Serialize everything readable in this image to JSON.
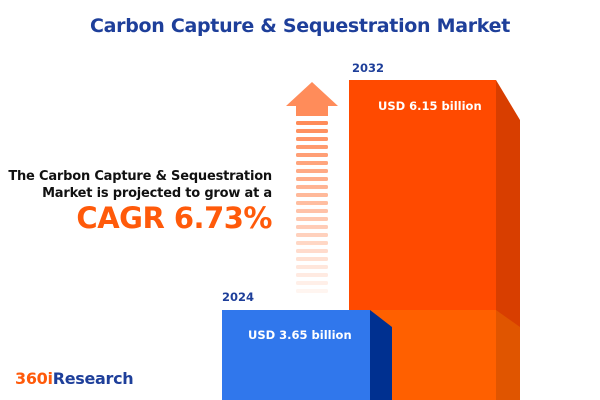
{
  "title": "Carbon Capture & Sequestration Market",
  "description_line1": "The Carbon Capture & Sequestration",
  "description_line2": "Market is projected to grow at a",
  "cagr_label": "CAGR 6.73%",
  "logo": {
    "part1": "360i",
    "part2": "Research"
  },
  "colors": {
    "title": "#1e3f9a",
    "bar_2024": "#3077ec",
    "bar_2024_side": "#003090",
    "bar_2032": "#ff4a00",
    "bar_2032_side": "#d83e00",
    "arrow": "#ff8c5a",
    "cagr": "#ff5a0a"
  },
  "chart_data": {
    "type": "bar",
    "title": "Carbon Capture & Sequestration Market",
    "categories": [
      "2024",
      "2032"
    ],
    "values": [
      3.65,
      6.15
    ],
    "unit": "USD billion",
    "data_labels": [
      "USD 3.65 billion",
      "USD 6.15 billion"
    ],
    "cagr": 6.73
  }
}
